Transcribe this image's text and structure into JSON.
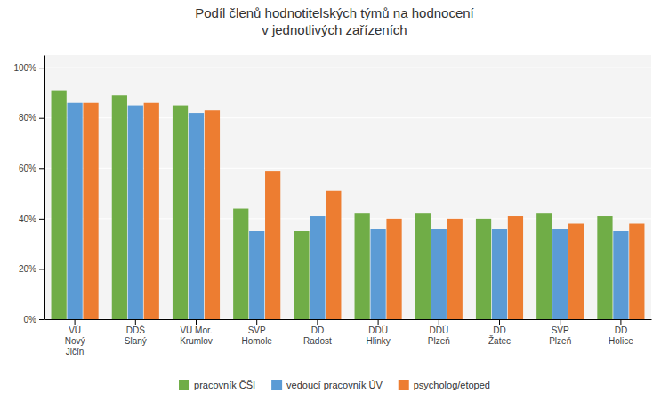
{
  "chart_data": {
    "type": "bar",
    "title": "Podíl členů hodnotitelských týmů na hodnocení\nv jednotlivých zařízeních",
    "categories": [
      "VÚ\nNový\nJičín",
      "DDŠ\nSlaný",
      "VÚ Mor.\nKrumlov",
      "SVP\nHomole",
      "DD\nRadost",
      "DDÚ\nHlinky",
      "DDÚ\nPlzeň",
      "DD\nŽatec",
      "SVP\nPlzeň",
      "DD\nHolice"
    ],
    "series": [
      {
        "name": "pracovník ČŠI",
        "color": "#70AD47",
        "values": [
          0.91,
          0.89,
          0.85,
          0.44,
          0.35,
          0.42,
          0.42,
          0.4,
          0.42,
          0.41
        ]
      },
      {
        "name": "vedoucí pracovník ÚV",
        "color": "#5B9BD5",
        "values": [
          0.86,
          0.85,
          0.82,
          0.35,
          0.41,
          0.36,
          0.36,
          0.36,
          0.36,
          0.35
        ]
      },
      {
        "name": "psycholog/etoped",
        "color": "#ED7D31",
        "values": [
          0.86,
          0.86,
          0.83,
          0.59,
          0.51,
          0.4,
          0.4,
          0.41,
          0.38,
          0.38
        ]
      }
    ],
    "ylim": [
      0,
      1.05
    ],
    "yticks": [
      {
        "value": 0.0,
        "label": "0%"
      },
      {
        "value": 0.2,
        "label": "20%"
      },
      {
        "value": 0.4,
        "label": "40%"
      },
      {
        "value": 0.6,
        "label": "60%"
      },
      {
        "value": 0.8,
        "label": "80%"
      },
      {
        "value": 1.0,
        "label": "100%"
      }
    ],
    "grid": true,
    "legend": "bottom"
  }
}
